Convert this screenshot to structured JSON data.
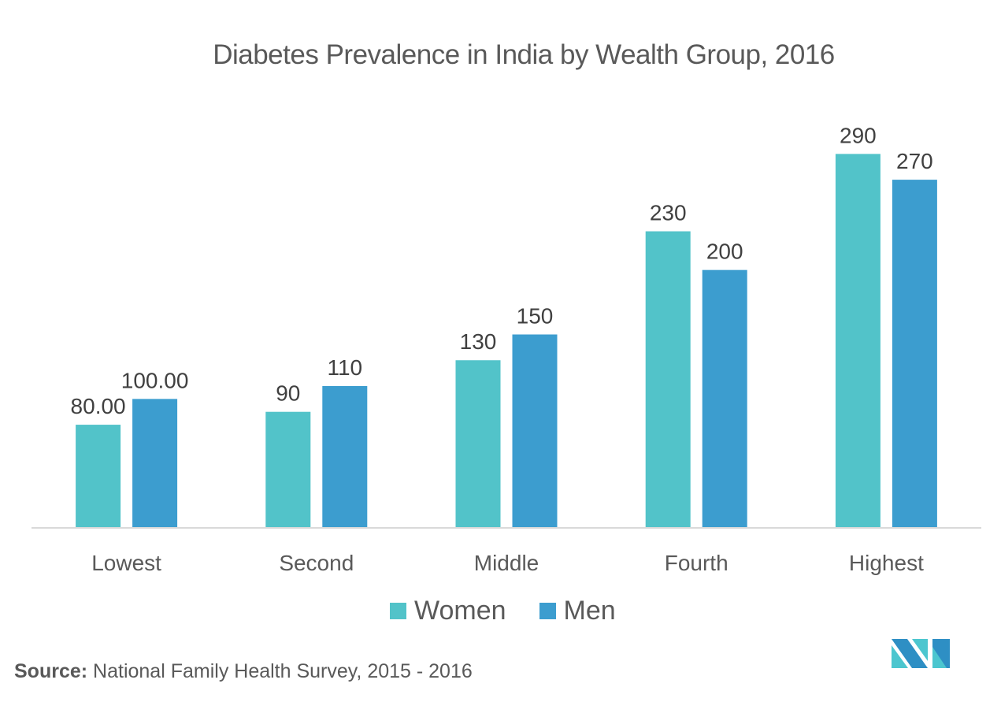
{
  "chart_data": {
    "type": "bar",
    "title": "Diabetes Prevalence in India by Wealth Group, 2016",
    "xlabel": "",
    "ylabel": "",
    "categories": [
      "Lowest",
      "Second",
      "Middle",
      "Fourth",
      "Highest"
    ],
    "series": [
      {
        "name": "Women",
        "color": "#52c3c9",
        "values": [
          80,
          90,
          130,
          230,
          290
        ],
        "labels": [
          "80.00",
          "90",
          "130",
          "230",
          "290"
        ]
      },
      {
        "name": "Men",
        "color": "#3c9dcf",
        "values": [
          100,
          110,
          150,
          200,
          270
        ],
        "labels": [
          "100.00",
          "110",
          "150",
          "200",
          "270"
        ]
      }
    ],
    "ylim": [
      0,
      300
    ],
    "grid": false,
    "legend_position": "bottom-center"
  },
  "source": {
    "label": "Source:",
    "text": " National Family Health Survey, 2015 - 2016"
  },
  "logo": {
    "name": "brand-logo",
    "colors": [
      "#2e8fc4",
      "#4cc6cf"
    ]
  }
}
